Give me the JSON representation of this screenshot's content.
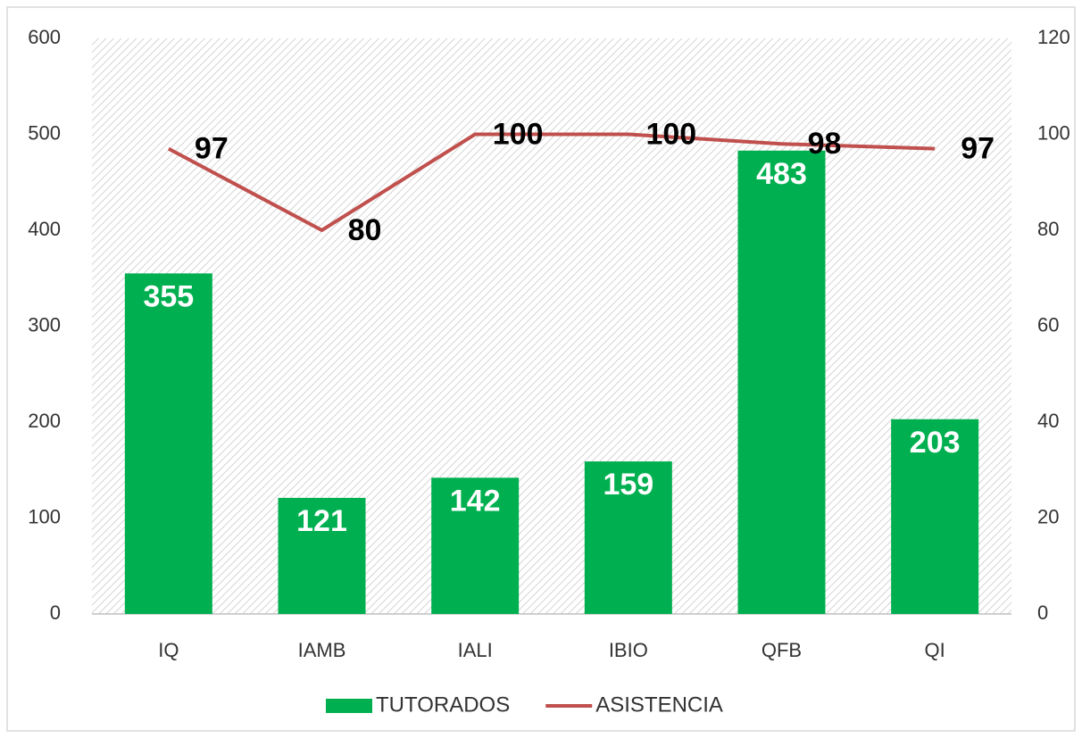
{
  "chart_data": {
    "type": "bar",
    "categories": [
      "IQ",
      "IAMB",
      "IALI",
      "IBIO",
      "QFB",
      "QI"
    ],
    "series": [
      {
        "name": "TUTORADOS",
        "type": "bar",
        "color": "#00b050",
        "values": [
          355,
          121,
          142,
          159,
          483,
          203
        ]
      },
      {
        "name": "ASISTENCIA",
        "type": "line",
        "axis": "y2",
        "color": "#c0504d",
        "values": [
          97,
          80,
          100,
          100,
          98,
          97
        ]
      }
    ],
    "ylim": [
      0,
      600
    ],
    "yticks": [
      0,
      100,
      200,
      300,
      400,
      500,
      600
    ],
    "y2lim": [
      0,
      120
    ],
    "y2ticks": [
      0,
      20,
      40,
      60,
      80,
      100,
      120
    ],
    "legend": "bottom"
  }
}
